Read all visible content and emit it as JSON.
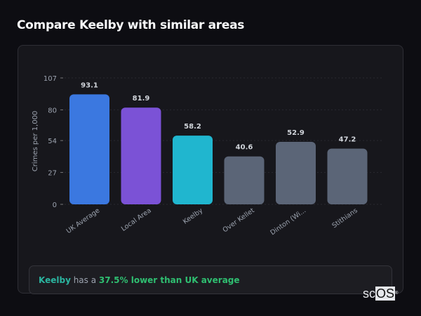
{
  "title": "Compare Keelby with similar areas",
  "chart_data": {
    "type": "bar",
    "categories": [
      "UK Average",
      "Local Area",
      "Keelby",
      "Over Kellet",
      "Dinton (Wi...",
      "Stithians"
    ],
    "values": [
      93.1,
      81.9,
      58.2,
      40.6,
      52.9,
      47.2
    ],
    "data_labels": [
      "93.1",
      "81.9",
      "58.2",
      "40.6",
      "52.9",
      "47.2"
    ],
    "colors": [
      "#3b78e0",
      "#7b52d6",
      "#20b6cf",
      "#5b6577",
      "#5b6577",
      "#5b6577"
    ],
    "ylabel": "Crimes per 1,000",
    "xlabel": "",
    "ylim": [
      0,
      107
    ],
    "yticks": [
      0,
      27,
      54,
      80,
      107
    ],
    "grid": true,
    "legend": "none"
  },
  "insight": {
    "area": "Keelby",
    "middle": " has a ",
    "comparison": "37.5% lower than UK average"
  },
  "logo": {
    "text_a": "sc",
    "text_b": "OS",
    "mark": "®"
  }
}
